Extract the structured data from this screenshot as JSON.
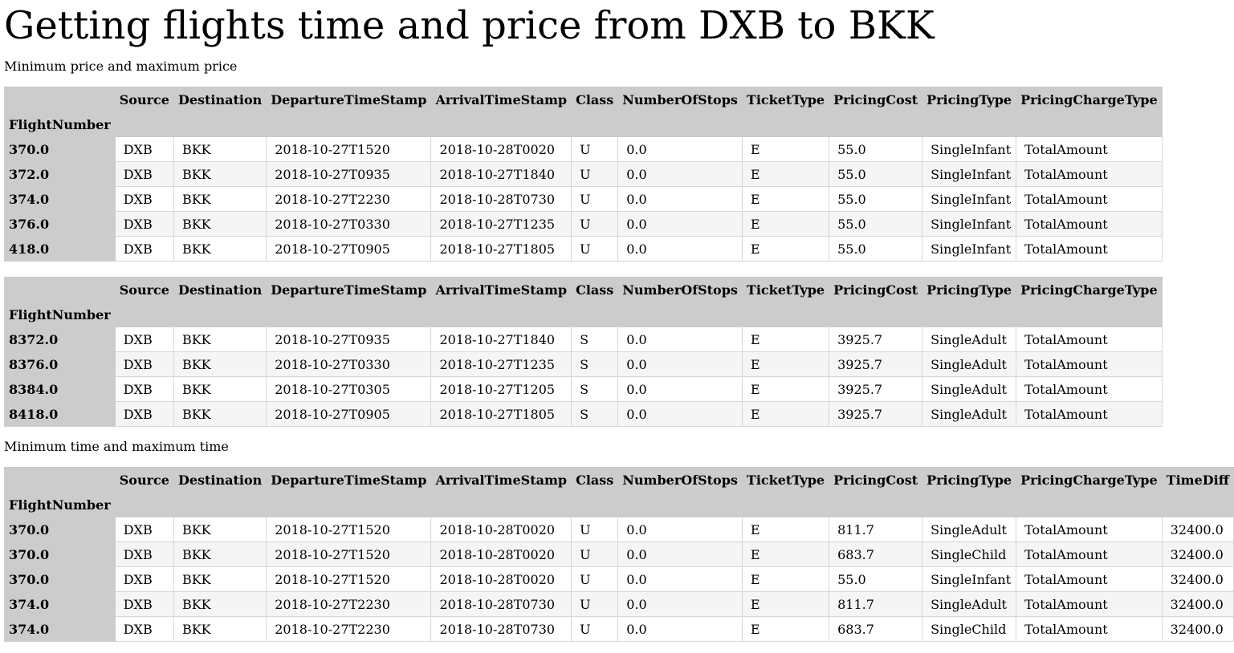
{
  "title": "Getting flights time and price from DXB to BKK",
  "section1_label": "Minimum price and maximum price",
  "section2_label": "Minimum time and maximum time",
  "index_name": "FlightNumber",
  "table1": {
    "columns": [
      "Source",
      "Destination",
      "DepartureTimeStamp",
      "ArrivalTimeStamp",
      "Class",
      "NumberOfStops",
      "TicketType",
      "PricingCost",
      "PricingType",
      "PricingChargeType"
    ],
    "rows": [
      [
        "370.0",
        "DXB",
        "BKK",
        "2018-10-27T1520",
        "2018-10-28T0020",
        "U",
        "0.0",
        "E",
        "55.0",
        "SingleInfant",
        "TotalAmount"
      ],
      [
        "372.0",
        "DXB",
        "BKK",
        "2018-10-27T0935",
        "2018-10-27T1840",
        "U",
        "0.0",
        "E",
        "55.0",
        "SingleInfant",
        "TotalAmount"
      ],
      [
        "374.0",
        "DXB",
        "BKK",
        "2018-10-27T2230",
        "2018-10-28T0730",
        "U",
        "0.0",
        "E",
        "55.0",
        "SingleInfant",
        "TotalAmount"
      ],
      [
        "376.0",
        "DXB",
        "BKK",
        "2018-10-27T0330",
        "2018-10-27T1235",
        "U",
        "0.0",
        "E",
        "55.0",
        "SingleInfant",
        "TotalAmount"
      ],
      [
        "418.0",
        "DXB",
        "BKK",
        "2018-10-27T0905",
        "2018-10-27T1805",
        "U",
        "0.0",
        "E",
        "55.0",
        "SingleInfant",
        "TotalAmount"
      ]
    ]
  },
  "table2": {
    "columns": [
      "Source",
      "Destination",
      "DepartureTimeStamp",
      "ArrivalTimeStamp",
      "Class",
      "NumberOfStops",
      "TicketType",
      "PricingCost",
      "PricingType",
      "PricingChargeType"
    ],
    "rows": [
      [
        "8372.0",
        "DXB",
        "BKK",
        "2018-10-27T0935",
        "2018-10-27T1840",
        "S",
        "0.0",
        "E",
        "3925.7",
        "SingleAdult",
        "TotalAmount"
      ],
      [
        "8376.0",
        "DXB",
        "BKK",
        "2018-10-27T0330",
        "2018-10-27T1235",
        "S",
        "0.0",
        "E",
        "3925.7",
        "SingleAdult",
        "TotalAmount"
      ],
      [
        "8384.0",
        "DXB",
        "BKK",
        "2018-10-27T0305",
        "2018-10-27T1205",
        "S",
        "0.0",
        "E",
        "3925.7",
        "SingleAdult",
        "TotalAmount"
      ],
      [
        "8418.0",
        "DXB",
        "BKK",
        "2018-10-27T0905",
        "2018-10-27T1805",
        "S",
        "0.0",
        "E",
        "3925.7",
        "SingleAdult",
        "TotalAmount"
      ]
    ]
  },
  "table3": {
    "columns": [
      "Source",
      "Destination",
      "DepartureTimeStamp",
      "ArrivalTimeStamp",
      "Class",
      "NumberOfStops",
      "TicketType",
      "PricingCost",
      "PricingType",
      "PricingChargeType",
      "TimeDiff"
    ],
    "rows": [
      [
        "370.0",
        "DXB",
        "BKK",
        "2018-10-27T1520",
        "2018-10-28T0020",
        "U",
        "0.0",
        "E",
        "811.7",
        "SingleAdult",
        "TotalAmount",
        "32400.0"
      ],
      [
        "370.0",
        "DXB",
        "BKK",
        "2018-10-27T1520",
        "2018-10-28T0020",
        "U",
        "0.0",
        "E",
        "683.7",
        "SingleChild",
        "TotalAmount",
        "32400.0"
      ],
      [
        "370.0",
        "DXB",
        "BKK",
        "2018-10-27T1520",
        "2018-10-28T0020",
        "U",
        "0.0",
        "E",
        "55.0",
        "SingleInfant",
        "TotalAmount",
        "32400.0"
      ],
      [
        "374.0",
        "DXB",
        "BKK",
        "2018-10-27T2230",
        "2018-10-28T0730",
        "U",
        "0.0",
        "E",
        "811.7",
        "SingleAdult",
        "TotalAmount",
        "32400.0"
      ],
      [
        "374.0",
        "DXB",
        "BKK",
        "2018-10-27T2230",
        "2018-10-28T0730",
        "U",
        "0.0",
        "E",
        "683.7",
        "SingleChild",
        "TotalAmount",
        "32400.0"
      ]
    ]
  }
}
